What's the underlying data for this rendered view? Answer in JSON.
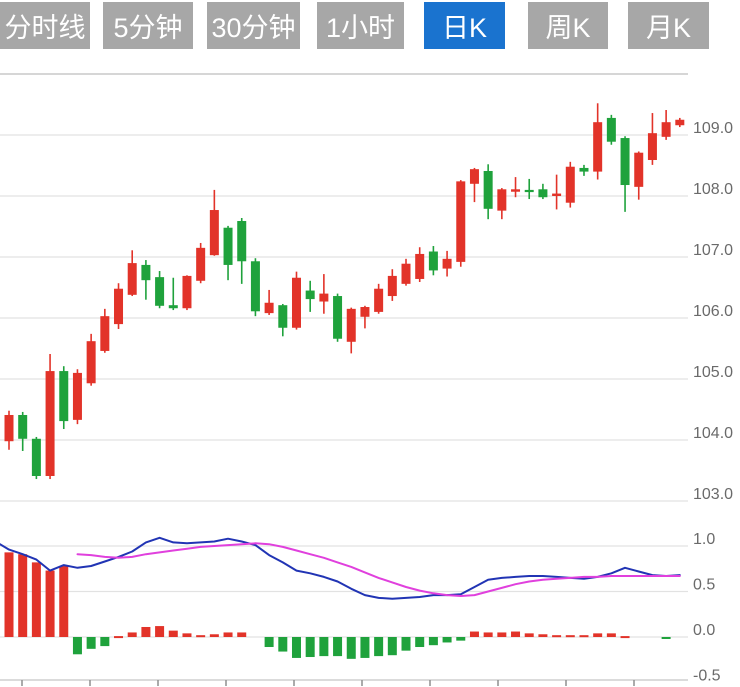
{
  "tabs": [
    {
      "label": "分时线",
      "active": false
    },
    {
      "label": "5分钟",
      "active": false
    },
    {
      "label": "30分钟",
      "active": false
    },
    {
      "label": "1小时",
      "active": false
    },
    {
      "label": "日K",
      "active": true
    },
    {
      "label": "周K",
      "active": false
    },
    {
      "label": "月K",
      "active": false
    }
  ],
  "colors": {
    "tab_bg": "#a7a7a7",
    "tab_active_bg": "#1a73cf",
    "tab_text": "#ffffff",
    "up_candle": "#e23329",
    "down_candle": "#1fa23c",
    "dif_line": "#2134b4",
    "dea_line": "#e040dd",
    "grid": "#e2e2e2",
    "grid_top": "#c8c8c8",
    "axis_line": "#cfcfcf",
    "axis_tick": "#8f8f8f",
    "axis_text": "#6a6a6a"
  },
  "chart_data": [
    {
      "type": "candlestick",
      "title": "daily K-line price panel",
      "ylabels": [
        "109.0",
        "108.0",
        "107.0",
        "106.0",
        "105.0",
        "104.0",
        "103.0"
      ],
      "ylim": [
        102.9,
        110.0
      ],
      "grid": true,
      "legend": "none",
      "candles": [
        [
          "u",
          103.98,
          104.41,
          104.48,
          103.84
        ],
        [
          "d",
          104.41,
          104.02,
          104.46,
          103.82
        ],
        [
          "d",
          104.02,
          103.41,
          104.05,
          103.36
        ],
        [
          "u",
          103.41,
          105.13,
          105.41,
          103.36
        ],
        [
          "d",
          105.13,
          104.31,
          105.21,
          104.18
        ],
        [
          "u",
          104.33,
          105.1,
          105.16,
          104.26
        ],
        [
          "u",
          104.93,
          105.62,
          105.74,
          104.89
        ],
        [
          "u",
          105.46,
          106.03,
          106.15,
          105.43
        ],
        [
          "u",
          105.9,
          106.48,
          106.57,
          105.82
        ],
        [
          "u",
          106.38,
          106.9,
          107.11,
          106.36
        ],
        [
          "d",
          106.87,
          106.62,
          106.95,
          106.3
        ],
        [
          "d",
          106.67,
          106.2,
          106.77,
          106.16
        ],
        [
          "d",
          106.21,
          106.16,
          106.66,
          106.13
        ],
        [
          "u",
          106.16,
          106.69,
          106.7,
          106.13
        ],
        [
          "u",
          106.61,
          107.15,
          107.23,
          106.57
        ],
        [
          "u",
          107.03,
          107.77,
          108.1,
          107.02
        ],
        [
          "d",
          107.48,
          106.87,
          107.51,
          106.62
        ],
        [
          "d",
          107.59,
          106.93,
          107.64,
          106.56
        ],
        [
          "d",
          106.93,
          106.11,
          106.98,
          106.03
        ],
        [
          "u",
          106.08,
          106.25,
          106.46,
          106.05
        ],
        [
          "d",
          106.21,
          105.84,
          106.23,
          105.7
        ],
        [
          "u",
          105.84,
          106.66,
          106.76,
          105.81
        ],
        [
          "d",
          106.45,
          106.31,
          106.61,
          106.1
        ],
        [
          "u",
          106.27,
          106.4,
          106.72,
          106.07
        ],
        [
          "d",
          106.36,
          105.66,
          106.4,
          105.61
        ],
        [
          "u",
          105.61,
          106.15,
          106.17,
          105.42
        ],
        [
          "u",
          106.02,
          106.18,
          106.2,
          105.83
        ],
        [
          "u",
          106.1,
          106.48,
          106.56,
          106.07
        ],
        [
          "u",
          106.36,
          106.69,
          106.8,
          106.28
        ],
        [
          "u",
          106.56,
          106.89,
          106.97,
          106.53
        ],
        [
          "u",
          106.64,
          107.05,
          107.16,
          106.59
        ],
        [
          "d",
          107.09,
          106.78,
          107.18,
          106.7
        ],
        [
          "u",
          106.81,
          106.97,
          107.1,
          106.68
        ],
        [
          "u",
          106.92,
          108.24,
          108.26,
          106.84
        ],
        [
          "u",
          108.2,
          108.44,
          108.46,
          107.9
        ],
        [
          "d",
          108.41,
          107.79,
          108.52,
          107.62
        ],
        [
          "u",
          107.76,
          108.11,
          108.13,
          107.62
        ],
        [
          "u",
          108.07,
          108.11,
          108.31,
          107.98
        ],
        [
          "d",
          108.1,
          108.07,
          108.28,
          107.95
        ],
        [
          "d",
          108.11,
          107.98,
          108.2,
          107.95
        ],
        [
          "u",
          108.0,
          108.04,
          108.35,
          107.78
        ],
        [
          "u",
          107.89,
          108.48,
          108.56,
          107.81
        ],
        [
          "d",
          108.46,
          108.4,
          108.51,
          108.33
        ],
        [
          "u",
          108.4,
          109.21,
          109.52,
          108.27
        ],
        [
          "d",
          109.28,
          108.89,
          109.33,
          108.84
        ],
        [
          "d",
          108.95,
          108.18,
          108.98,
          107.74
        ],
        [
          "u",
          108.15,
          108.71,
          108.73,
          107.94
        ],
        [
          "u",
          108.59,
          109.03,
          109.36,
          108.51
        ],
        [
          "u",
          108.97,
          109.21,
          109.41,
          108.92
        ],
        [
          "u",
          109.16,
          109.25,
          109.28,
          109.13
        ]
      ]
    },
    {
      "type": "macd",
      "title": "MACD indicator panel",
      "ylabels": [
        "1.0",
        "0.5",
        "0.0",
        "-0.5"
      ],
      "ylim": [
        -0.55,
        1.25
      ],
      "histogram": [
        0.93,
        0.91,
        0.82,
        0.73,
        0.78,
        -0.19,
        -0.13,
        -0.1,
        0.01,
        0.05,
        0.11,
        0.12,
        0.07,
        0.04,
        0.02,
        0.03,
        0.05,
        0.05,
        0,
        -0.11,
        -0.16,
        -0.23,
        -0.22,
        -0.21,
        -0.21,
        -0.24,
        -0.23,
        -0.21,
        -0.2,
        -0.15,
        -0.11,
        -0.09,
        -0.06,
        -0.04,
        0.06,
        0.05,
        0.05,
        0.06,
        0.04,
        0.03,
        0.02,
        0.02,
        0.02,
        0.04,
        0.04,
        0.01,
        0,
        0,
        -0.01,
        0
      ],
      "dif": {
        "x0_value": 1.02,
        "values": [
          0.96,
          0.91,
          0.85,
          0.73,
          0.79,
          0.76,
          0.78,
          0.83,
          0.88,
          0.94,
          1.04,
          1.09,
          1.04,
          1.03,
          1.04,
          1.05,
          1.08,
          1.05,
          1.01,
          0.9,
          0.82,
          0.73,
          0.7,
          0.66,
          0.61,
          0.53,
          0.46,
          0.43,
          0.42,
          0.43,
          0.44,
          0.46,
          0.46,
          0.47,
          0.55,
          0.63,
          0.65,
          0.66,
          0.67,
          0.67,
          0.66,
          0.65,
          0.64,
          0.66,
          0.7,
          0.76,
          0.72,
          0.68,
          0.67,
          0.68
        ]
      },
      "dea": {
        "start_index": 5,
        "values": [
          0.91,
          0.9,
          0.88,
          0.87,
          0.88,
          0.91,
          0.93,
          0.95,
          0.97,
          0.99,
          1.0,
          1.01,
          1.02,
          1.03,
          1.02,
          0.99,
          0.95,
          0.91,
          0.87,
          0.82,
          0.77,
          0.71,
          0.65,
          0.6,
          0.55,
          0.51,
          0.48,
          0.46,
          0.45,
          0.46,
          0.5,
          0.54,
          0.58,
          0.61,
          0.63,
          0.64,
          0.65,
          0.66,
          0.66,
          0.67,
          0.67,
          0.67,
          0.67,
          0.67,
          0.67
        ]
      }
    }
  ]
}
